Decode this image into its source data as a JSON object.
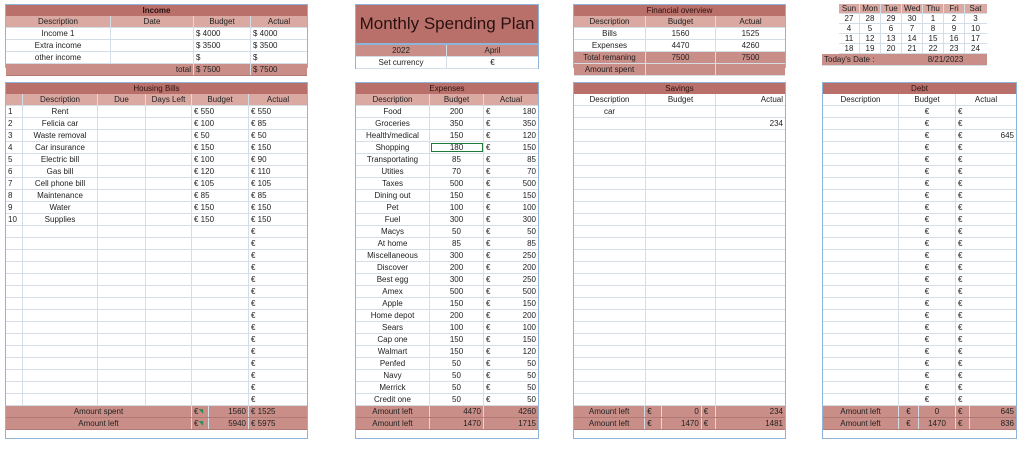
{
  "income": {
    "title": "Income",
    "cols": [
      "Description",
      "Date",
      "Budget",
      "Actual"
    ],
    "rows": [
      [
        "Income 1",
        "",
        "$ 4000",
        "$ 4000"
      ],
      [
        "Extra income",
        "",
        "$ 3500",
        "$ 3500"
      ],
      [
        "other income",
        "",
        "$",
        "$"
      ]
    ],
    "total": [
      "total",
      "$ 7500",
      "$ 7500"
    ]
  },
  "plan": {
    "title": "Monthly Spending Plan",
    "year": "2022",
    "month": "April",
    "currency_label": "Set currency",
    "currency": "€"
  },
  "overview": {
    "title": "Financial overview",
    "cols": [
      "Description",
      "Budget",
      "Actual"
    ],
    "rows": [
      [
        "Bills",
        "1560",
        "1525"
      ],
      [
        "Expenses",
        "4470",
        "4260"
      ],
      [
        "Total remaning",
        "7500",
        "7500"
      ],
      [
        "Amount spent",
        "",
        ""
      ]
    ]
  },
  "calendar": {
    "days": [
      "Sun",
      "Mon",
      "Tue",
      "Wed",
      "Thu",
      "Fri",
      "Sat"
    ],
    "weeks": [
      [
        "27",
        "28",
        "29",
        "30",
        "1",
        "2",
        "3"
      ],
      [
        "4",
        "5",
        "6",
        "7",
        "8",
        "9",
        "10"
      ],
      [
        "11",
        "12",
        "13",
        "14",
        "15",
        "16",
        "17"
      ],
      [
        "18",
        "19",
        "20",
        "21",
        "22",
        "23",
        "24"
      ]
    ],
    "today_label": "Today's Date :",
    "today": "8/21/2023"
  },
  "housing": {
    "title": "Housing Bills",
    "cols": [
      "Description",
      "Due",
      "Days Left",
      "Budget",
      "Actual"
    ],
    "rows": [
      [
        "1",
        "Rent",
        "€ 550",
        "€ 550"
      ],
      [
        "2",
        "Felicia car",
        "€ 100",
        "€ 85"
      ],
      [
        "3",
        "Waste removal",
        "€ 50",
        "€ 50"
      ],
      [
        "4",
        "Car insurance",
        "€ 150",
        "€ 150"
      ],
      [
        "5",
        "Electric bill",
        "€ 100",
        "€ 90"
      ],
      [
        "6",
        "Gas bill",
        "€ 120",
        "€ 110"
      ],
      [
        "7",
        "Cell phone bill",
        "€ 105",
        "€ 105"
      ],
      [
        "8",
        "Maintenance",
        "€ 85",
        "€ 85"
      ],
      [
        "9",
        "Water",
        "€ 150",
        "€ 150"
      ],
      [
        "10",
        "Supplies",
        "€ 150",
        "€ 150"
      ]
    ],
    "empty_rows": 15,
    "empty_actual": "€",
    "spent": [
      "Amount spent",
      "€",
      "1560",
      "€ 1525"
    ],
    "left": [
      "Amount left",
      "€",
      "5940",
      "€ 5975"
    ]
  },
  "expenses": {
    "title": "Expenses",
    "cols": [
      "Description",
      "Budget",
      "Actual"
    ],
    "currency": "€",
    "rows": [
      [
        "Food",
        "200",
        "180"
      ],
      [
        "Groceries",
        "350",
        "350"
      ],
      [
        "Health/medical",
        "150",
        "120"
      ],
      [
        "Shopping",
        "180",
        "150"
      ],
      [
        "Transportating",
        "85",
        "85"
      ],
      [
        "Utities",
        "70",
        "70"
      ],
      [
        "Taxes",
        "500",
        "500"
      ],
      [
        "Dining out",
        "150",
        "150"
      ],
      [
        "Pet",
        "100",
        "100"
      ],
      [
        "Fuel",
        "300",
        "300"
      ],
      [
        "Macys",
        "50",
        "50"
      ],
      [
        "At home",
        "85",
        "85"
      ],
      [
        "Miscellaneous",
        "300",
        "250"
      ],
      [
        "Discover",
        "200",
        "200"
      ],
      [
        "Best egg",
        "300",
        "250"
      ],
      [
        "Amex",
        "500",
        "500"
      ],
      [
        "Apple",
        "150",
        "150"
      ],
      [
        "Home depot",
        "200",
        "200"
      ],
      [
        "Sears",
        "100",
        "100"
      ],
      [
        "Cap one",
        "150",
        "150"
      ],
      [
        "Walmart",
        "150",
        "120"
      ],
      [
        "Penfed",
        "50",
        "50"
      ],
      [
        "Navy",
        "50",
        "50"
      ],
      [
        "Merrick",
        "50",
        "50"
      ],
      [
        "Credit one",
        "50",
        "50"
      ]
    ],
    "left1": [
      "Amount left",
      "4470",
      "4260"
    ],
    "left2": [
      "Amount left",
      "1470",
      "1715"
    ]
  },
  "savings": {
    "title": "Savings",
    "cols": [
      "Description",
      "Budget",
      "Actual"
    ],
    "rows": [
      [
        "car",
        "",
        ""
      ],
      [
        "",
        "",
        "234"
      ]
    ],
    "empty_rows": 23,
    "left1": [
      "Amount left",
      "€",
      "0",
      "€",
      "234"
    ],
    "left2": [
      "Amount left",
      "€",
      "1470",
      "€",
      "1481"
    ]
  },
  "debt": {
    "title": "Debt",
    "cols": [
      "Description",
      "Budget",
      "Actual"
    ],
    "currency": "€",
    "row_count": 25,
    "actual_values": {
      "2": "645"
    },
    "left1": [
      "Amount left",
      "€",
      "0",
      "€",
      "645"
    ],
    "left2": [
      "Amount left",
      "€",
      "1470",
      "€",
      "836"
    ]
  }
}
